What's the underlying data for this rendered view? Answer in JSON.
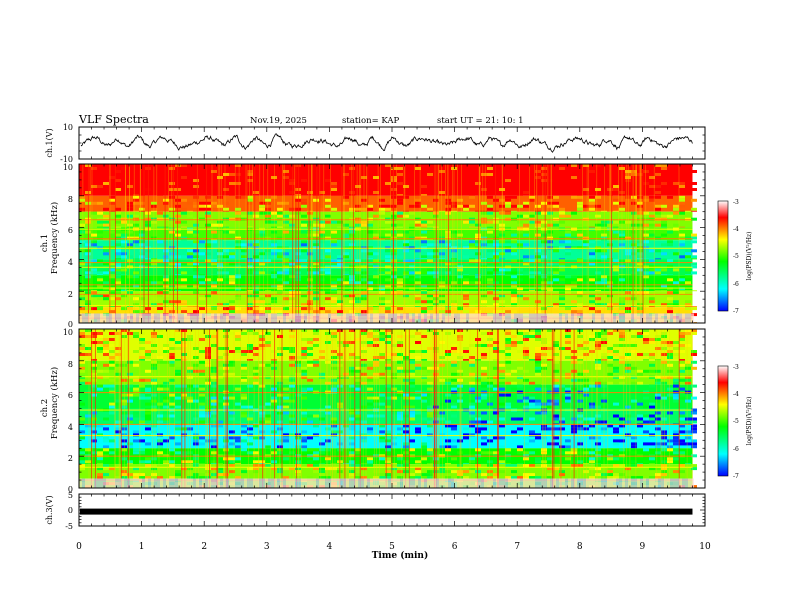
{
  "header": {
    "title": "VLF Spectra",
    "date": "Nov.19, 2025",
    "station": "station= KAP",
    "start_time": "start  UT =  21: 10: 1"
  },
  "colors": {
    "colormap": [
      "#0000ff",
      "#00ffff",
      "#00ff00",
      "#ffff00",
      "#ff0000",
      "#ffffff"
    ]
  },
  "chart_data": [
    {
      "type": "line",
      "name": "ch1-waveform",
      "ylabel": "ch.1(V)",
      "ylim": [
        -10,
        10
      ],
      "yticks": [
        10,
        -10
      ],
      "xlim": [
        0,
        10
      ],
      "line_end_min": 9.8,
      "wave": {
        "amplitude_v": 3.5,
        "center_v": 0.5
      }
    },
    {
      "type": "heatmap",
      "name": "ch1-spectrogram",
      "ylabel_line1": "ch.1",
      "ylabel_line2": "Frequency (kHz)",
      "ylim": [
        0,
        10
      ],
      "yticks": [
        "10",
        "8",
        "6",
        "4",
        "2",
        "0"
      ],
      "xlim": [
        0,
        10
      ],
      "data_end_min": 9.8,
      "colorbar": {
        "ticks": [
          "-3",
          "-4",
          "-5",
          "-6",
          "-7"
        ],
        "label": "log(PSD)(V²/Hz)",
        "range": [
          -7,
          -3
        ]
      },
      "bands_khz": [
        {
          "from": 8.0,
          "to": 10.0,
          "level": -3.3
        },
        {
          "from": 7.0,
          "to": 8.0,
          "level": -3.9
        },
        {
          "from": 6.0,
          "to": 7.0,
          "level": -4.8
        },
        {
          "from": 5.2,
          "to": 6.0,
          "level": -5.0
        },
        {
          "from": 4.0,
          "to": 5.2,
          "level": -5.8
        },
        {
          "from": 3.0,
          "to": 4.0,
          "level": -5.5
        },
        {
          "from": 2.0,
          "to": 3.0,
          "level": -5.2
        },
        {
          "from": 1.0,
          "to": 2.0,
          "level": -4.7
        },
        {
          "from": 0.0,
          "to": 1.0,
          "level": -4.3
        }
      ],
      "lines_khz": [
        0.3,
        1.1,
        1.8,
        2.2,
        2.4,
        3.5,
        3.8,
        4.7,
        5.3,
        5.9,
        6.5
      ]
    },
    {
      "type": "heatmap",
      "name": "ch2-spectrogram",
      "ylabel_line1": "ch.2",
      "ylabel_line2": "Frequency (kHz)",
      "ylim": [
        0,
        10
      ],
      "yticks": [
        "10",
        "8",
        "6",
        "4",
        "2",
        "0"
      ],
      "xlim": [
        0,
        10
      ],
      "data_end_min": 9.8,
      "colorbar": {
        "ticks": [
          "-3",
          "-4",
          "-5",
          "-6",
          "-7"
        ],
        "label": "log(PSD)(V²/Hz)",
        "range": [
          -7,
          -3
        ]
      },
      "bands_khz": [
        {
          "from": 8.0,
          "to": 10.0,
          "level": -4.5
        },
        {
          "from": 6.5,
          "to": 8.0,
          "level": -4.8
        },
        {
          "from": 5.0,
          "to": 6.5,
          "level": -5.4
        },
        {
          "from": 4.0,
          "to": 5.0,
          "level": -5.6
        },
        {
          "from": 2.5,
          "to": 4.0,
          "level": -6.2
        },
        {
          "from": 1.5,
          "to": 2.5,
          "level": -5.2
        },
        {
          "from": 0.0,
          "to": 1.5,
          "level": -4.8
        }
      ],
      "lines_khz": [
        0.5,
        1.3,
        2.0,
        3.3,
        4.0,
        4.9,
        6.0,
        7.0
      ]
    },
    {
      "type": "line",
      "name": "ch3-signal",
      "ylabel": "ch.3(V)",
      "ylim": [
        -5,
        5
      ],
      "yticks": [
        "5",
        "0",
        "-5"
      ],
      "xlim": [
        0,
        10
      ],
      "level_v": -0.5,
      "xlabel": "Time (min)",
      "xticks": [
        "0",
        "1",
        "2",
        "3",
        "4",
        "5",
        "6",
        "7",
        "8",
        "9",
        "10"
      ]
    }
  ]
}
